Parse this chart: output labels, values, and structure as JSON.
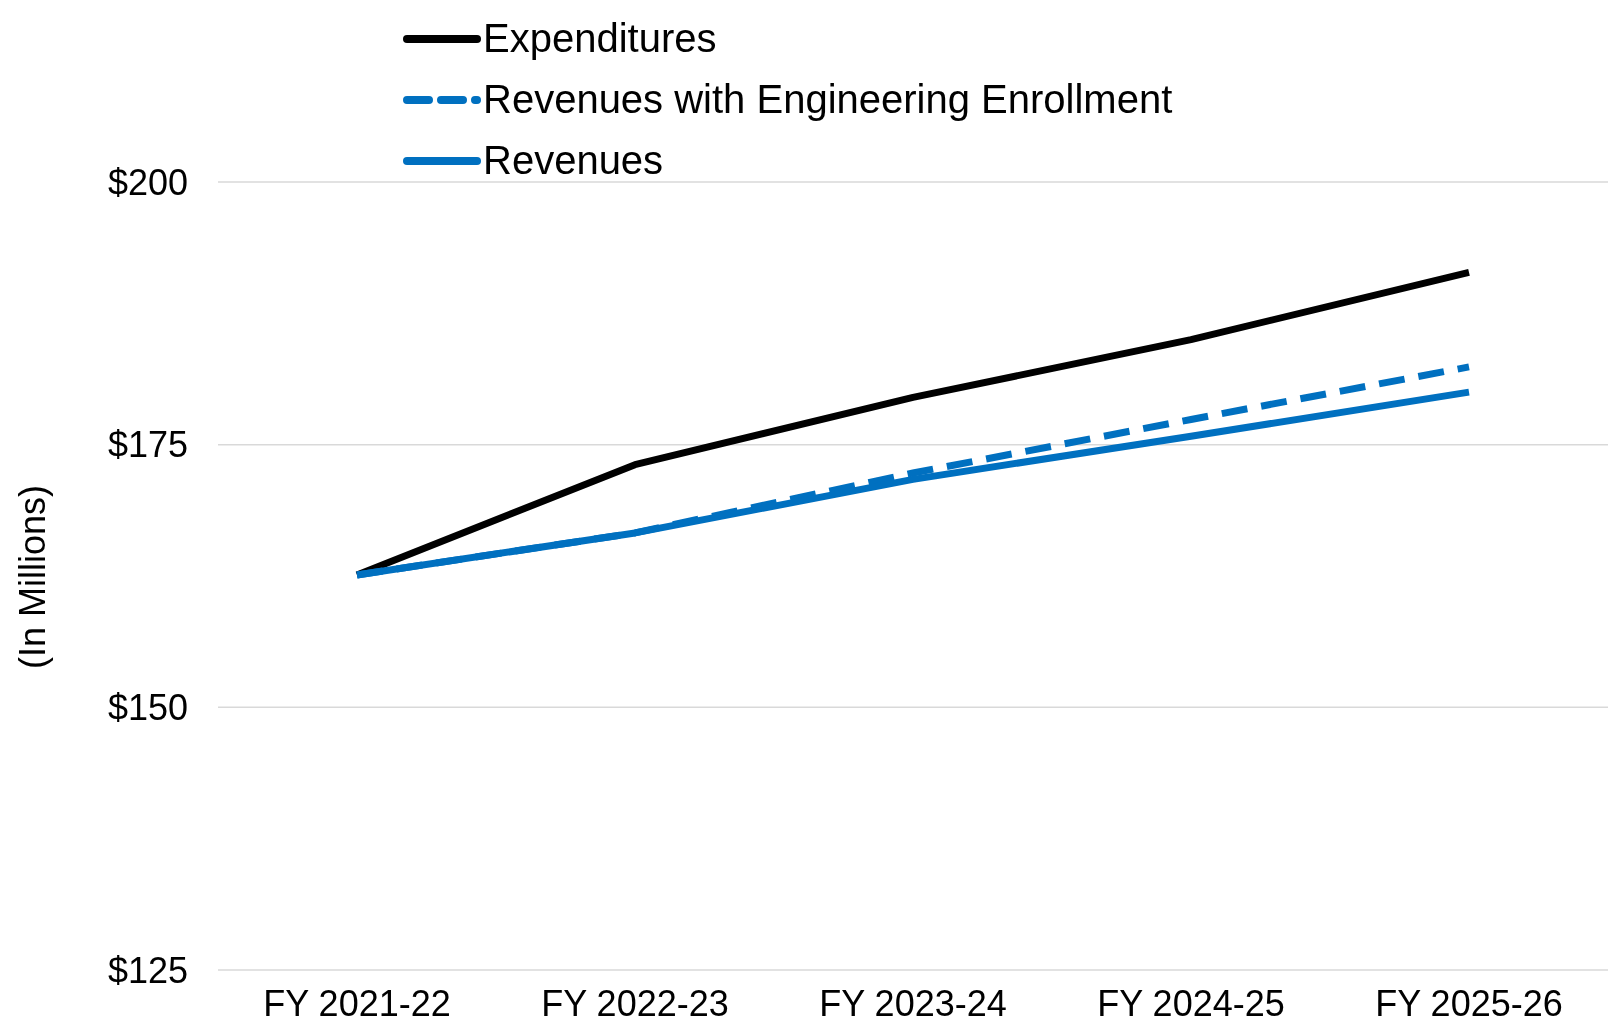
{
  "chart_data": {
    "type": "line",
    "ylabel": "(In Millions)",
    "categories": [
      "FY 2021-22",
      "FY 2022-23",
      "FY 2023-24",
      "FY 2024-25",
      "FY 2025-26"
    ],
    "series": [
      {
        "name": "Expenditures",
        "color": "#000000",
        "line_style": "solid",
        "values": [
          162.6,
          173.1,
          179.5,
          185.0,
          191.4
        ]
      },
      {
        "name": "Revenues with Engineering Enrollment",
        "color": "#0070c0",
        "line_style": "dashed",
        "values": [
          162.6,
          166.6,
          172.3,
          177.4,
          182.4
        ]
      },
      {
        "name": "Revenues",
        "color": "#0070c0",
        "line_style": "solid",
        "values": [
          162.6,
          166.6,
          171.7,
          175.8,
          180.0
        ]
      }
    ],
    "ylim": [
      125,
      200
    ],
    "yticks": [
      {
        "value": 125,
        "label": "$125"
      },
      {
        "value": 150,
        "label": "$150"
      },
      {
        "value": 175,
        "label": "$175"
      },
      {
        "value": 200,
        "label": "$200"
      }
    ],
    "grid": "y",
    "legend": "top",
    "marker": "none"
  }
}
